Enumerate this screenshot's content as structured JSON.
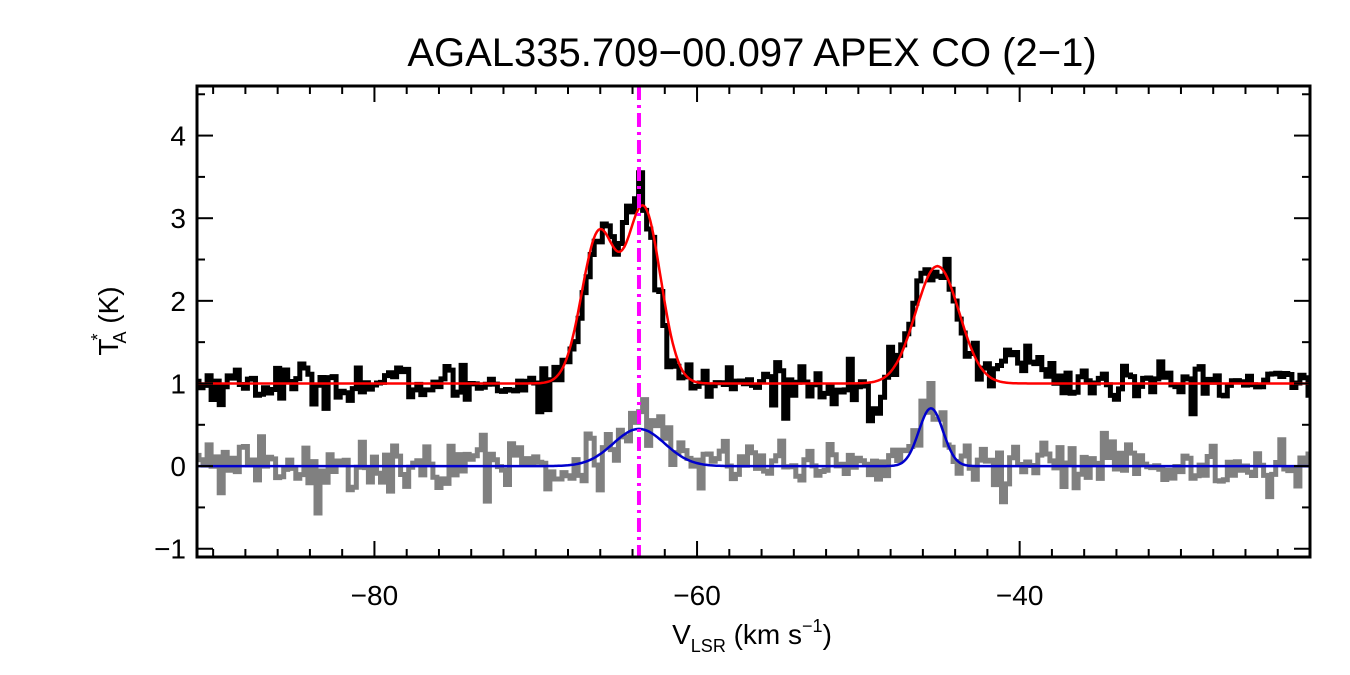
{
  "chart_data": {
    "type": "line",
    "title": "AGAL335.709−00.097  APEX CO (2−1)",
    "xlabel": {
      "main": "V",
      "sub": "LSR",
      "unit_open": " (km s",
      "sup": "−1",
      "unit_close": ")"
    },
    "ylabel": {
      "main": "T",
      "sup": "*",
      "sub": "A",
      "unit": " (K)"
    },
    "xlim": [
      -91,
      -22
    ],
    "ylim": [
      -1.1,
      4.6
    ],
    "xticks": [
      -80,
      -60,
      -40
    ],
    "xtick_labels": [
      "−80",
      "−60",
      "−40"
    ],
    "yticks": [
      -1,
      0,
      1,
      2,
      3,
      4
    ],
    "ytick_labels": [
      "−1",
      "0",
      "1",
      "2",
      "3",
      "4"
    ],
    "vline": {
      "x": -63.6,
      "color": "#ff00ff",
      "style": "dash-dot"
    },
    "channel_width": 0.25,
    "series": [
      {
        "role": "observed spectrum (upper)",
        "color": "#000000",
        "style": "histogram",
        "offset": 1.0,
        "noise_sigma": 0.12,
        "peak_x": -63.5,
        "peak_y": 3.55,
        "features": [
          {
            "center": -66.0,
            "amplitude": 1.8,
            "sigma": 1.0
          },
          {
            "center": -63.5,
            "amplitude": 2.1,
            "sigma": 1.0
          },
          {
            "center": -45.2,
            "amplitude": 1.45,
            "sigma": 1.3
          },
          {
            "center": -49.0,
            "amplitude": -0.35,
            "sigma": 0.4
          },
          {
            "center": -40.0,
            "amplitude": 0.3,
            "sigma": 1.5
          }
        ]
      },
      {
        "role": "fit (upper)",
        "color": "#ff0000",
        "style": "line",
        "offset": 1.0,
        "components": [
          {
            "center": -66.1,
            "amplitude": 1.8,
            "sigma": 1.05
          },
          {
            "center": -63.3,
            "amplitude": 2.1,
            "sigma": 1.05
          },
          {
            "center": -45.1,
            "amplitude": 1.42,
            "sigma": 1.35
          }
        ]
      },
      {
        "role": "observed spectrum (lower)",
        "color": "#808080",
        "style": "histogram",
        "offset": 0.0,
        "noise_sigma": 0.16,
        "peak_x": -45.5,
        "peak_y": 1.0,
        "features": [
          {
            "center": -63.6,
            "amplitude": 0.45,
            "sigma": 1.6
          },
          {
            "center": -45.5,
            "amplitude": 0.72,
            "sigma": 0.75
          }
        ]
      },
      {
        "role": "fit (lower)",
        "color": "#0000cc",
        "style": "line",
        "offset": 0.0,
        "components": [
          {
            "center": -63.6,
            "amplitude": 0.45,
            "sigma": 1.6
          },
          {
            "center": -45.5,
            "amplitude": 0.7,
            "sigma": 0.75
          }
        ]
      }
    ]
  }
}
